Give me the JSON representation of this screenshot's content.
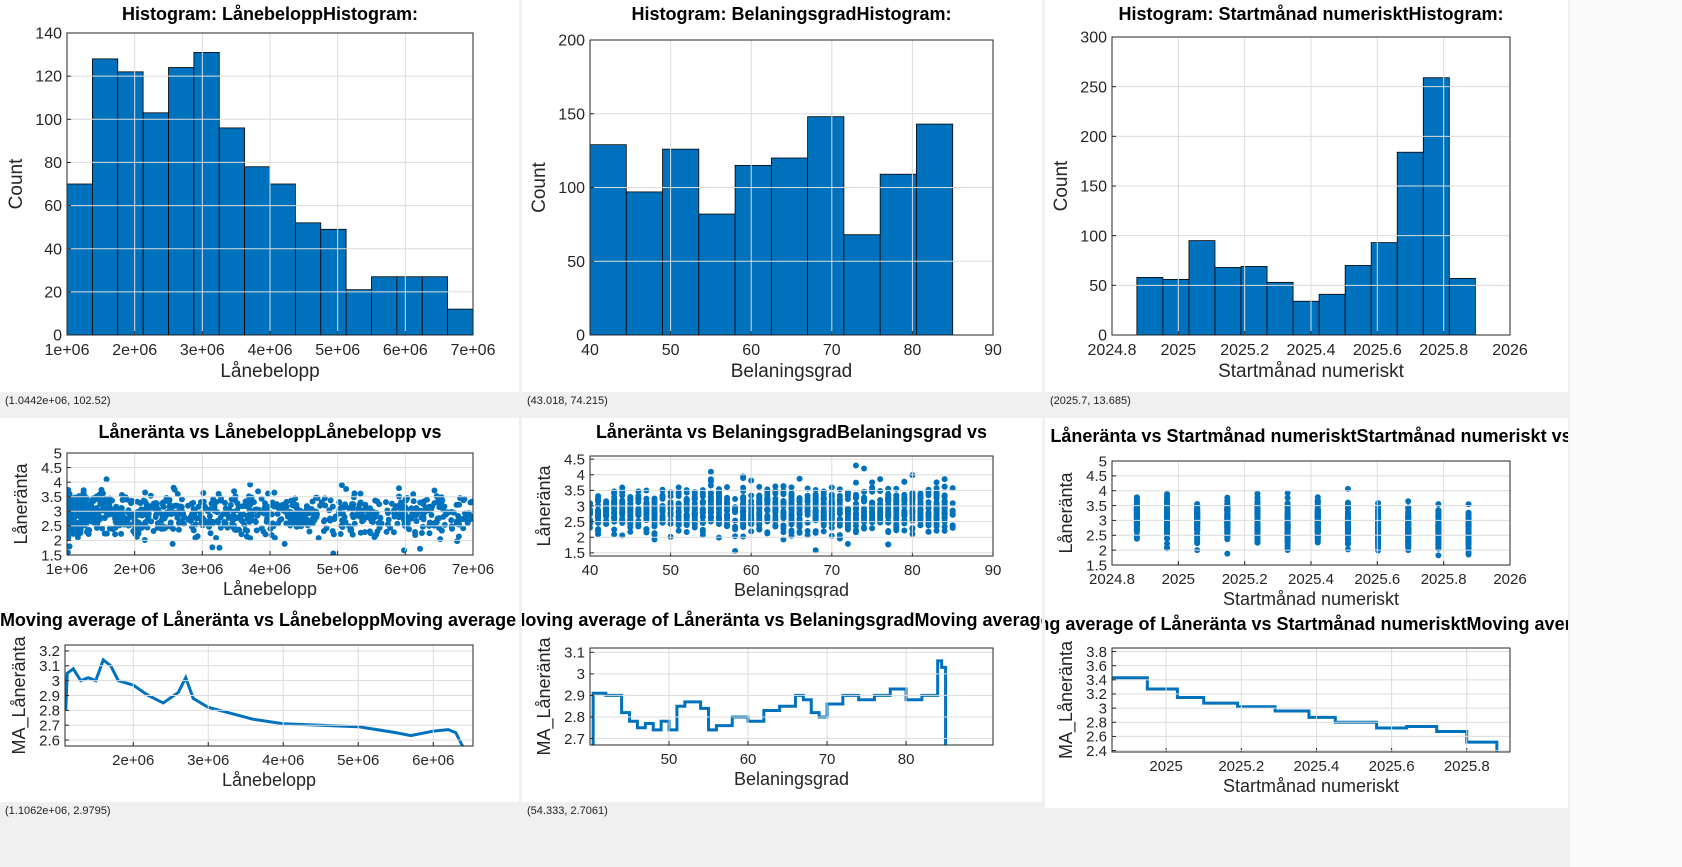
{
  "statusbars": [
    "(1.0442e+06, 102.52)",
    "(43.018, 74.215)",
    "(2025.7, 13.685)",
    "(1.1062e+06, 2.9795)",
    "(54.333, 2.7061)"
  ],
  "colors": {
    "bar": "#0072BD",
    "line": "#0072BD",
    "grid": "#dcdcdc"
  },
  "chart_data": [
    {
      "id": "h1",
      "type": "bar",
      "title": "Histogram: LånebeloppHistogram:",
      "xlabel": "Lånebelopp",
      "ylabel": "Count",
      "xlim": [
        1000000,
        7000000
      ],
      "ylim": [
        0,
        140
      ],
      "bin_start": 1000000,
      "bin_width": 375000,
      "values": [
        70,
        128,
        122,
        103,
        124,
        131,
        96,
        78,
        70,
        52,
        49,
        21,
        27,
        27,
        27,
        12
      ],
      "xticks": [
        "1e+06",
        "2e+06",
        "3e+06",
        "4e+06",
        "5e+06",
        "6e+06",
        "7e+06"
      ],
      "xtick_values": [
        1000000,
        2000000,
        3000000,
        4000000,
        5000000,
        6000000,
        7000000
      ],
      "yticks": [
        "0",
        "20",
        "40",
        "60",
        "80",
        "100",
        "120",
        "140"
      ],
      "ytick_values": [
        0,
        20,
        40,
        60,
        80,
        100,
        120,
        140
      ]
    },
    {
      "id": "h2",
      "type": "bar",
      "title": "Histogram: BelaningsgradHistogram:",
      "xlabel": "Belaningsgrad",
      "ylabel": "Count",
      "xlim": [
        40,
        90
      ],
      "ylim": [
        0,
        200
      ],
      "bin_start": 40,
      "bin_width": 4.5,
      "values": [
        129,
        97,
        126,
        82,
        115,
        120,
        148,
        68,
        109,
        143
      ],
      "xticks": [
        "40",
        "50",
        "60",
        "70",
        "80",
        "90"
      ],
      "xtick_values": [
        40,
        50,
        60,
        70,
        80,
        90
      ],
      "yticks": [
        "0",
        "50",
        "100",
        "150",
        "200"
      ],
      "ytick_values": [
        0,
        50,
        100,
        150,
        200
      ]
    },
    {
      "id": "h3",
      "type": "bar",
      "title": "Histogram: Startmånad numerisktHistogram:",
      "xlabel": "Startmånad numeriskt",
      "ylabel": "Count",
      "xlim": [
        2024.8,
        2026
      ],
      "ylim": [
        0,
        300
      ],
      "bin_start": 2024.875,
      "bin_width": 0.0785,
      "values": [
        58,
        56,
        95,
        68,
        69,
        53,
        34,
        41,
        70,
        93,
        184,
        259,
        57
      ],
      "xticks": [
        "2024.8",
        "2025",
        "2025.2",
        "2025.4",
        "2025.6",
        "2025.8",
        "2026"
      ],
      "xtick_values": [
        2024.8,
        2025,
        2025.2,
        2025.4,
        2025.6,
        2025.8,
        2026
      ],
      "yticks": [
        "0",
        "50",
        "100",
        "150",
        "200",
        "250",
        "300"
      ],
      "ytick_values": [
        0,
        50,
        100,
        150,
        200,
        250,
        300
      ]
    },
    {
      "id": "s1",
      "type": "scatter",
      "title": "Låneränta vs LånebeloppLånebelopp vs",
      "xlabel": "Lånebelopp",
      "ylabel": "Låneränta",
      "xlim": [
        1000000,
        7000000
      ],
      "ylim": [
        1.5,
        5
      ],
      "distribution": {
        "n": 900,
        "x_min": 1000000,
        "x_max": 7000000,
        "x_skew": 1.6,
        "y_mean": 2.9,
        "y_sd": 0.38,
        "y_trend": -0.05,
        "discrete_x": 0
      },
      "xticks": [
        "1e+06",
        "2e+06",
        "3e+06",
        "4e+06",
        "5e+06",
        "6e+06",
        "7e+06"
      ],
      "xtick_values": [
        1000000,
        2000000,
        3000000,
        4000000,
        5000000,
        6000000,
        7000000
      ],
      "yticks": [
        "1.5",
        "2",
        "2.5",
        "3",
        "3.5",
        "4",
        "4.5",
        "5"
      ],
      "ytick_values": [
        1.5,
        2,
        2.5,
        3,
        3.5,
        4,
        4.5,
        5
      ]
    },
    {
      "id": "s2",
      "type": "scatter",
      "title": "Låneränta vs BelaningsgradBelaningsgrad vs",
      "xlabel": "Belaningsgrad",
      "ylabel": "Låneränta",
      "xlim": [
        40,
        90
      ],
      "ylim": [
        1.4,
        4.6
      ],
      "distribution": {
        "n": 1100,
        "x_min": 40,
        "x_max": 85,
        "x_skew": 1,
        "y_mean": 2.85,
        "y_sd": 0.38,
        "y_trend": 0,
        "discrete_x": 1
      },
      "xticks": [
        "40",
        "50",
        "60",
        "70",
        "80",
        "90"
      ],
      "xtick_values": [
        40,
        50,
        60,
        70,
        80,
        90
      ],
      "yticks": [
        "1.5",
        "2",
        "2.5",
        "3",
        "3.5",
        "4",
        "4.5"
      ],
      "ytick_values": [
        1.5,
        2,
        2.5,
        3,
        3.5,
        4,
        4.5
      ]
    },
    {
      "id": "s3",
      "type": "scatter",
      "title": "Låneränta vs Startmånad numerisktStartmånad numeriskt vs",
      "xlabel": "Startmånad numeriskt",
      "ylabel": "Låneränta",
      "xlim": [
        2024.8,
        2026
      ],
      "ylim": [
        1.5,
        5
      ],
      "distribution": {
        "n": 1100,
        "x_min": 2024.875,
        "x_max": 2025.875,
        "x_skew": 1,
        "y_mean": 2.9,
        "y_sd": 0.35,
        "y_trend": -0.5,
        "discrete_x": 12
      },
      "xticks": [
        "2024.8",
        "2025",
        "2025.2",
        "2025.4",
        "2025.6",
        "2025.8",
        "2026"
      ],
      "xtick_values": [
        2024.8,
        2025,
        2025.2,
        2025.4,
        2025.6,
        2025.8,
        2026
      ],
      "yticks": [
        "1.5",
        "2",
        "2.5",
        "3",
        "3.5",
        "4",
        "4.5",
        "5"
      ],
      "ytick_values": [
        1.5,
        2,
        2.5,
        3,
        3.5,
        4,
        4.5,
        5
      ]
    },
    {
      "id": "m1",
      "type": "line",
      "title": "Moving average of Låneränta vs LånebeloppMoving average of",
      "xlabel": "Lånebelopp",
      "ylabel": "MA_Låneränta",
      "xlim": [
        1090000,
        6530000
      ],
      "ylim": [
        2.56,
        3.24
      ],
      "stairs": false,
      "x": [
        1100000,
        1120000,
        1200000,
        1300000,
        1400000,
        1500000,
        1600000,
        1700000,
        1800000,
        2000000,
        2200000,
        2400000,
        2600000,
        2700000,
        2800000,
        3000000,
        3300000,
        3600000,
        4000000,
        4500000,
        5000000,
        5500000,
        5700000,
        6000000,
        6200000,
        6300000,
        6400000
      ],
      "y": [
        2.8,
        3.05,
        3.08,
        3.0,
        3.02,
        3.0,
        3.14,
        3.1,
        3.0,
        2.97,
        2.9,
        2.85,
        2.92,
        3.02,
        2.88,
        2.82,
        2.78,
        2.74,
        2.71,
        2.7,
        2.69,
        2.65,
        2.63,
        2.66,
        2.67,
        2.65,
        2.55
      ],
      "xticks": [
        "2e+06",
        "3e+06",
        "4e+06",
        "5e+06",
        "6e+06"
      ],
      "xtick_values": [
        2000000,
        3000000,
        4000000,
        5000000,
        6000000
      ],
      "yticks": [
        "2.6",
        "2.7",
        "2.8",
        "2.9",
        "3",
        "3.1",
        "3.2"
      ],
      "ytick_values": [
        2.6,
        2.7,
        2.8,
        2.9,
        3,
        3.1,
        3.2
      ]
    },
    {
      "id": "m2",
      "type": "line",
      "title": "Moving average of Låneränta vs BelaningsgradMoving average of",
      "xlabel": "Belaningsgrad",
      "ylabel": "MA_Låneränta",
      "xlim": [
        40,
        91
      ],
      "ylim": [
        2.67,
        3.12
      ],
      "stairs": true,
      "x": [
        40.4,
        40.4,
        42,
        44,
        45,
        46,
        47,
        48,
        49,
        50,
        51,
        52,
        54,
        55,
        56,
        58,
        60,
        62,
        64,
        66,
        67,
        68,
        69,
        70,
        72,
        74,
        76,
        78,
        80,
        82,
        84,
        84.5,
        85,
        85
      ],
      "y": [
        2.67,
        2.91,
        2.9,
        2.82,
        2.78,
        2.75,
        2.77,
        2.74,
        2.78,
        2.74,
        2.85,
        2.87,
        2.84,
        2.74,
        2.76,
        2.8,
        2.78,
        2.83,
        2.85,
        2.9,
        2.88,
        2.82,
        2.8,
        2.86,
        2.9,
        2.88,
        2.9,
        2.93,
        2.88,
        2.9,
        3.06,
        3.03,
        2.67,
        2.67
      ],
      "xticks": [
        "50",
        "60",
        "70",
        "80"
      ],
      "xtick_values": [
        50,
        60,
        70,
        80
      ],
      "yticks": [
        "2.7",
        "2.8",
        "2.9",
        "3",
        "3.1"
      ],
      "ytick_values": [
        2.7,
        2.8,
        2.9,
        3,
        3.1
      ]
    },
    {
      "id": "m3",
      "type": "line",
      "title": "Moving average of Låneränta vs Startmånad numerisktMoving average of",
      "xlabel": "Startmånad numeriskt",
      "ylabel": "MA_Låneränta",
      "xlim": [
        2024.856,
        2025.915
      ],
      "ylim": [
        2.38,
        3.85
      ],
      "stairs": true,
      "x": [
        2024.856,
        2024.95,
        2025.03,
        2025.1,
        2025.19,
        2025.29,
        2025.38,
        2025.45,
        2025.56,
        2025.64,
        2025.72,
        2025.8,
        2025.88,
        2025.88
      ],
      "y": [
        3.43,
        3.27,
        3.15,
        3.07,
        3.02,
        2.96,
        2.87,
        2.8,
        2.72,
        2.74,
        2.67,
        2.52,
        2.52,
        2.38
      ],
      "xticks": [
        "2025",
        "2025.2",
        "2025.4",
        "2025.6",
        "2025.8"
      ],
      "xtick_values": [
        2025,
        2025.2,
        2025.4,
        2025.6,
        2025.8
      ],
      "yticks": [
        "2.4",
        "2.6",
        "2.8",
        "3",
        "3.2",
        "3.4",
        "3.6",
        "3.8"
      ],
      "ytick_values": [
        2.4,
        2.6,
        2.8,
        3,
        3.2,
        3.4,
        3.6,
        3.8
      ]
    }
  ]
}
